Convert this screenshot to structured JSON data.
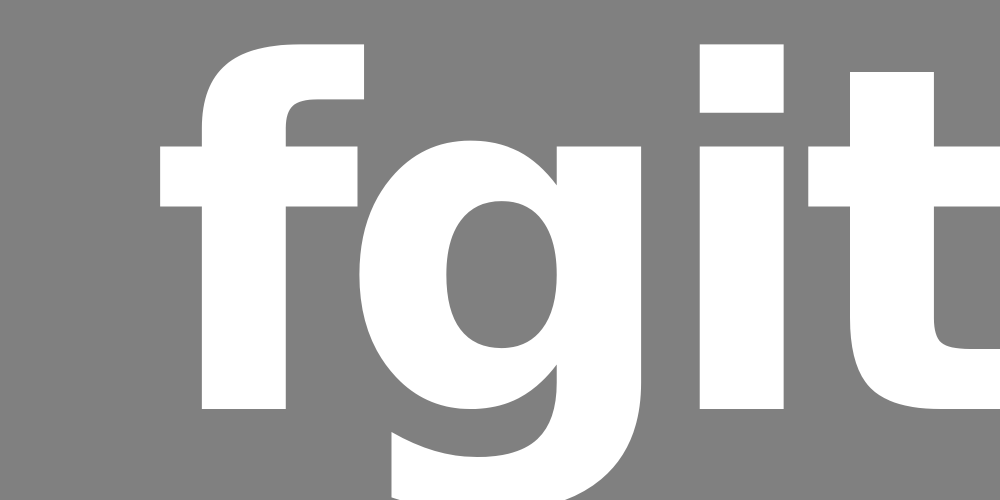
{
  "logo": {
    "text": "fgit",
    "text_color": "#ffffff",
    "background_color": "#808080"
  }
}
